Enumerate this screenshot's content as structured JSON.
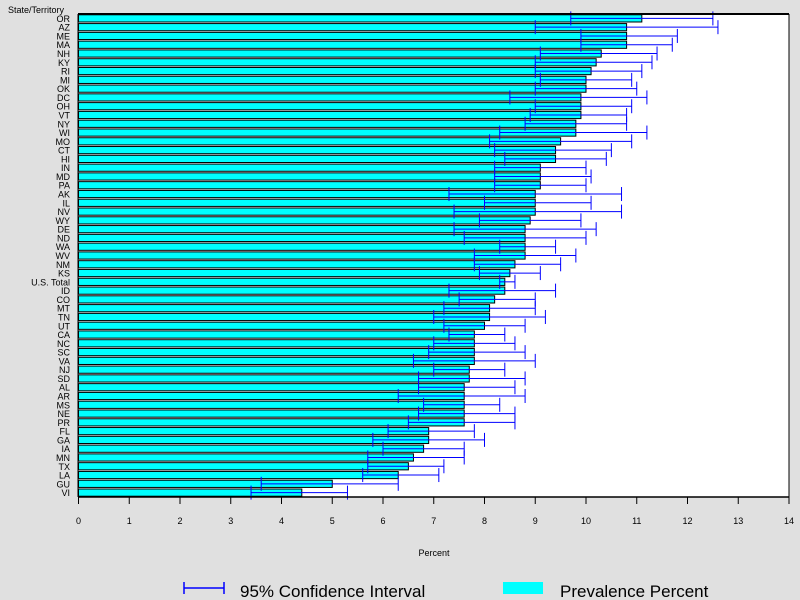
{
  "chart_data": {
    "type": "bar",
    "orientation": "horizontal",
    "ylabel": "State/Territory",
    "xlabel": "Percent",
    "xlim": [
      0,
      14
    ],
    "xticks": [
      0,
      1,
      2,
      3,
      4,
      5,
      6,
      7,
      8,
      9,
      10,
      11,
      12,
      13,
      14
    ],
    "legend": {
      "position": "bottom",
      "entries": [
        "95% Confidence Interval",
        "Prevalence Percent"
      ]
    },
    "colors": {
      "bar": "#00ffff",
      "ci": "#0000ff",
      "outline": "#000000"
    },
    "categories": [
      "OR",
      "AZ",
      "ME",
      "MA",
      "NH",
      "KY",
      "RI",
      "MI",
      "OK",
      "DC",
      "OH",
      "VT",
      "NY",
      "WI",
      "MO",
      "CT",
      "HI",
      "IN",
      "MD",
      "PA",
      "AK",
      "IL",
      "NV",
      "WY",
      "DE",
      "ND",
      "WA",
      "WV",
      "NM",
      "KS",
      "U.S. Total",
      "ID",
      "CO",
      "MT",
      "TN",
      "UT",
      "CA",
      "NC",
      "SC",
      "VA",
      "NJ",
      "SD",
      "AL",
      "AR",
      "MS",
      "NE",
      "PR",
      "FL",
      "GA",
      "IA",
      "MN",
      "TX",
      "LA",
      "GU",
      "VI"
    ],
    "series": [
      {
        "name": "Prevalence Percent",
        "values": [
          11.1,
          10.8,
          10.8,
          10.8,
          10.3,
          10.2,
          10.1,
          10.0,
          10.0,
          9.9,
          9.9,
          9.9,
          9.8,
          9.8,
          9.5,
          9.4,
          9.4,
          9.1,
          9.1,
          9.1,
          9.0,
          9.0,
          9.0,
          8.9,
          8.8,
          8.8,
          8.8,
          8.8,
          8.6,
          8.5,
          8.4,
          8.4,
          8.2,
          8.1,
          8.1,
          8.0,
          7.8,
          7.8,
          7.8,
          7.8,
          7.7,
          7.7,
          7.6,
          7.6,
          7.6,
          7.6,
          7.6,
          6.9,
          6.9,
          6.8,
          6.6,
          6.5,
          6.3,
          5.0,
          4.4
        ]
      },
      {
        "name": "CI Lower",
        "values": [
          9.7,
          9.0,
          9.9,
          9.9,
          9.1,
          9.0,
          9.0,
          9.1,
          9.0,
          8.5,
          9.0,
          8.9,
          8.8,
          8.3,
          8.1,
          8.2,
          8.4,
          8.2,
          8.2,
          8.2,
          7.3,
          8.0,
          7.4,
          7.9,
          7.4,
          7.6,
          8.3,
          7.8,
          7.8,
          7.9,
          8.3,
          7.3,
          7.5,
          7.2,
          7.0,
          7.2,
          7.3,
          7.0,
          6.9,
          6.6,
          7.0,
          6.7,
          6.7,
          6.3,
          6.8,
          6.7,
          6.5,
          6.1,
          5.8,
          6.0,
          5.7,
          5.7,
          5.6,
          3.6,
          3.4
        ]
      },
      {
        "name": "CI Upper",
        "values": [
          12.5,
          12.6,
          11.8,
          11.7,
          11.4,
          11.3,
          11.1,
          10.9,
          11.0,
          11.2,
          10.9,
          10.8,
          10.8,
          11.2,
          10.9,
          10.5,
          10.4,
          10.0,
          10.1,
          10.0,
          10.7,
          10.1,
          10.7,
          9.9,
          10.2,
          10.0,
          9.4,
          9.8,
          9.5,
          9.1,
          8.6,
          9.4,
          9.0,
          9.0,
          9.2,
          8.8,
          8.4,
          8.6,
          8.8,
          9.0,
          8.4,
          8.8,
          8.6,
          8.8,
          8.3,
          8.6,
          8.6,
          7.8,
          8.0,
          7.6,
          7.6,
          7.2,
          7.1,
          6.3,
          5.3
        ]
      }
    ]
  }
}
